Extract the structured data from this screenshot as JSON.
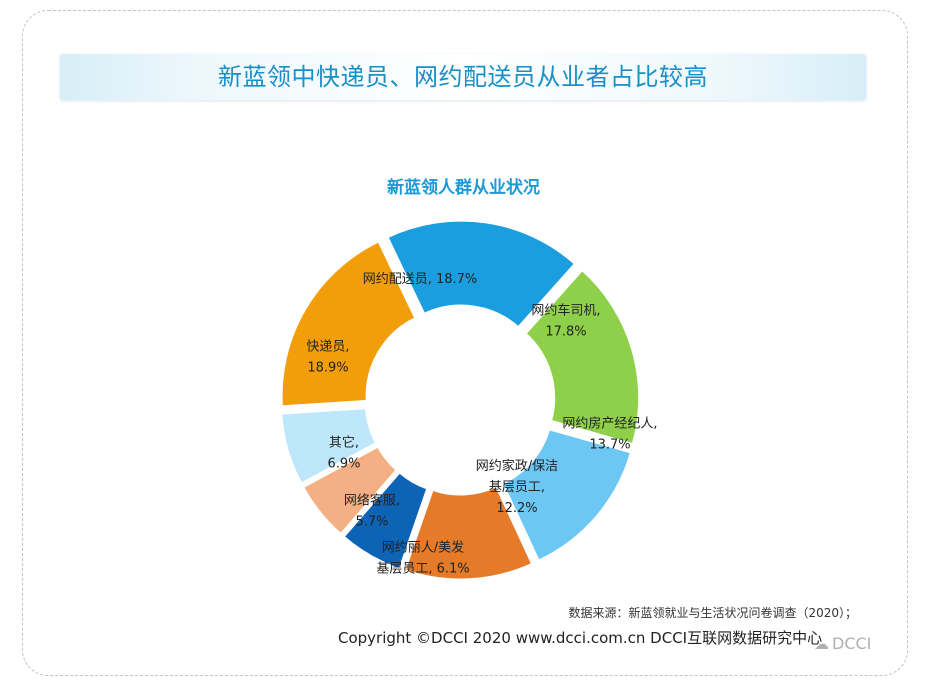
{
  "banner_title": "新蓝领中快递员、网约配送员从业者占比较高",
  "chart_data": {
    "type": "pie",
    "title": "新蓝领人群从业状况",
    "slices": [
      {
        "label": "网约配送员",
        "value": 18.7,
        "color": "#1b9ee0",
        "display_lines": [
          "网约配送员, 18.7%"
        ]
      },
      {
        "label": "网约车司机",
        "value": 17.8,
        "color": "#8fd04a",
        "display_lines": [
          "网约车司机,",
          "17.8%"
        ]
      },
      {
        "label": "网约房产经纪人",
        "value": 13.7,
        "color": "#6cc7f5",
        "display_lines": [
          "网约房产经纪人,",
          "13.7%"
        ]
      },
      {
        "label": "网约家政/保洁基层员工",
        "value": 12.2,
        "color": "#e57a28",
        "display_lines": [
          "网约家政/保洁",
          "基层员工,",
          "12.2%"
        ]
      },
      {
        "label": "网约丽人/美发基层员工",
        "value": 6.1,
        "color": "#0d63b5",
        "display_lines": [
          "网约丽人/美发",
          "基层员工, 6.1%"
        ]
      },
      {
        "label": "网络客服",
        "value": 5.7,
        "color": "#f4b084",
        "display_lines": [
          "网络客服,",
          "5.7%"
        ]
      },
      {
        "label": "其它",
        "value": 6.9,
        "color": "#bfe7fb",
        "display_lines": [
          "其它,",
          "6.9%"
        ]
      },
      {
        "label": "快递员",
        "value": 18.9,
        "color": "#f19e0a",
        "display_lines": [
          "快递员,",
          "18.9%"
        ]
      }
    ]
  },
  "source_note": "数据来源：新蓝领就业与生活状况问卷调查（2020）；",
  "copyright": "Copyright  ©DCCI 2020  www.dcci.com.cn   DCCI互联网数据研究中心",
  "watermark": "DCCI"
}
